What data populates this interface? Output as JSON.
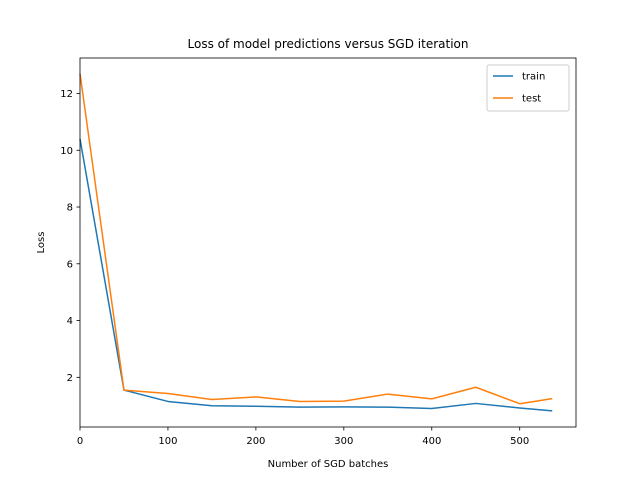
{
  "chart_data": {
    "type": "line",
    "title": "Loss of model predictions versus SGD iteration",
    "xlabel": "Number of SGD batches",
    "ylabel": "Loss",
    "xlim": [
      0,
      564
    ],
    "ylim": [
      0.25,
      13.25
    ],
    "xticks": [
      0,
      100,
      200,
      300,
      400,
      500
    ],
    "yticks": [
      2,
      4,
      6,
      8,
      10,
      12
    ],
    "grid": false,
    "legend_position": "top-right",
    "x": [
      0,
      50,
      100,
      150,
      200,
      250,
      300,
      350,
      400,
      450,
      500,
      537
    ],
    "series": [
      {
        "name": "train",
        "color": "#1f77b4",
        "values": [
          10.4,
          1.55,
          1.15,
          1.0,
          0.98,
          0.95,
          0.96,
          0.95,
          0.9,
          1.08,
          0.92,
          0.82
        ]
      },
      {
        "name": "test",
        "color": "#ff7f0e",
        "values": [
          12.7,
          1.55,
          1.43,
          1.22,
          1.31,
          1.15,
          1.16,
          1.41,
          1.24,
          1.65,
          1.07,
          1.25
        ]
      }
    ]
  }
}
